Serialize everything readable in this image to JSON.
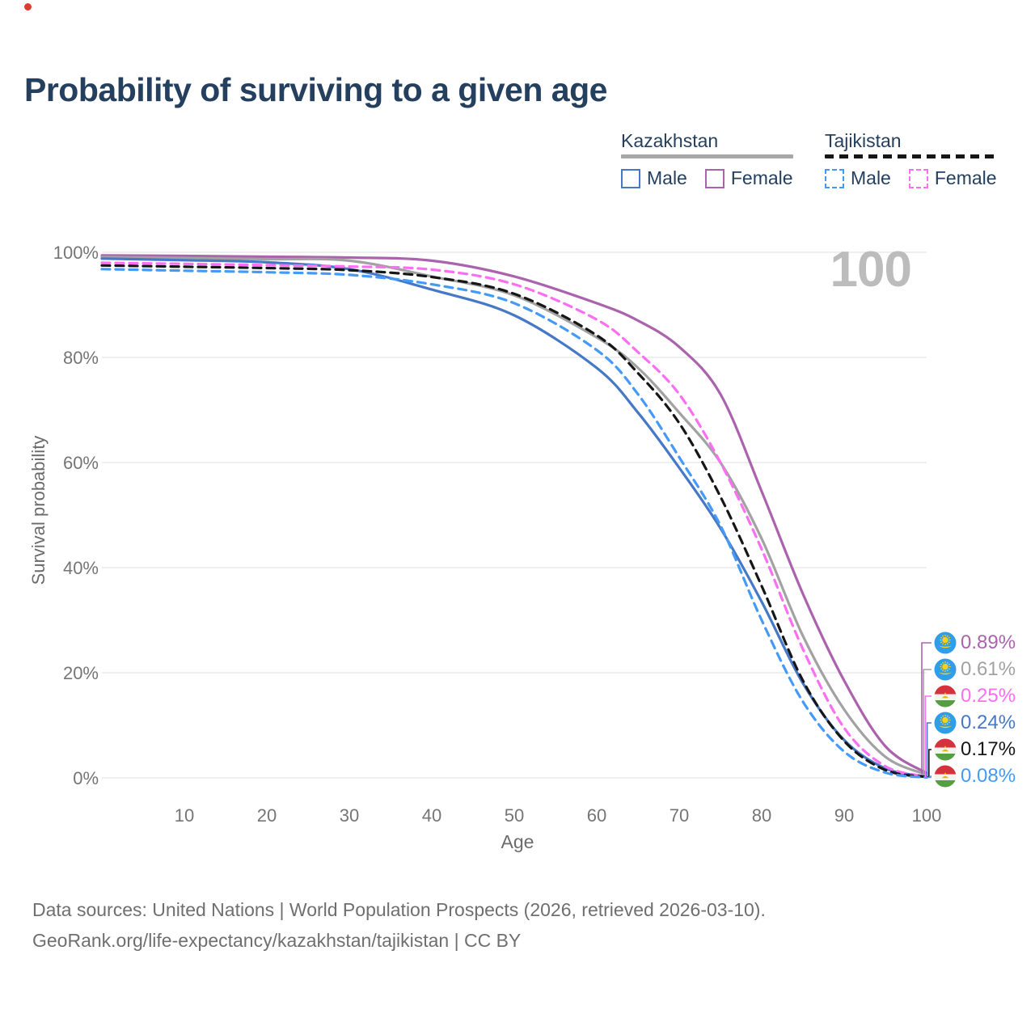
{
  "title": "Probability of surviving to a given age",
  "watermark": "100",
  "legend": {
    "groups": [
      {
        "country": "Kazakhstan",
        "line_style": "solid",
        "line_color": "#a7a7a7",
        "items": [
          {
            "label": "Male",
            "color": "#4678c8",
            "dashed": false
          },
          {
            "label": "Female",
            "color": "#ab63ad",
            "dashed": false
          }
        ]
      },
      {
        "country": "Tajikistan",
        "line_style": "dashed",
        "line_color": "#161616",
        "items": [
          {
            "label": "Male",
            "color": "#459af7",
            "dashed": true
          },
          {
            "label": "Female",
            "color": "#fc6ef2",
            "dashed": true
          }
        ]
      }
    ]
  },
  "chart_data": {
    "type": "line",
    "title": "Probability of surviving to a given age",
    "xlabel": "Age",
    "ylabel": "Survival probability",
    "xlim": [
      0,
      100
    ],
    "ylim": [
      0,
      100
    ],
    "grid": true,
    "x_ticks": [
      {
        "label": "10",
        "value": 10
      },
      {
        "label": "20",
        "value": 20
      },
      {
        "label": "30",
        "value": 30
      },
      {
        "label": "40",
        "value": 40
      },
      {
        "label": "50",
        "value": 50
      },
      {
        "label": "60",
        "value": 60
      },
      {
        "label": "70",
        "value": 70
      },
      {
        "label": "80",
        "value": 80
      },
      {
        "label": "90",
        "value": 90
      },
      {
        "label": "100",
        "value": 100
      }
    ],
    "y_ticks": [
      {
        "label": "0%",
        "value": 0
      },
      {
        "label": "20%",
        "value": 20
      },
      {
        "label": "40%",
        "value": 40
      },
      {
        "label": "60%",
        "value": 60
      },
      {
        "label": "80%",
        "value": 80
      },
      {
        "label": "100%",
        "value": 100
      }
    ],
    "series": [
      {
        "name": "Kazakhstan Female",
        "color": "#ab63ad",
        "dashed": false,
        "flag": "kz",
        "end_value": "0.89%",
        "row": 0,
        "points": [
          [
            0,
            99.4
          ],
          [
            10,
            99.3
          ],
          [
            20,
            99.15
          ],
          [
            30,
            99.0
          ],
          [
            40,
            98.4
          ],
          [
            50,
            95.4
          ],
          [
            60,
            90.3
          ],
          [
            65,
            87.0
          ],
          [
            70,
            82.0
          ],
          [
            75,
            73.0
          ],
          [
            80,
            54.5
          ],
          [
            85,
            35.0
          ],
          [
            90,
            18.5
          ],
          [
            95,
            6.0
          ],
          [
            100,
            0.89
          ]
        ]
      },
      {
        "name": "Kazakhstan Both sexes",
        "color": "#a2a2a2",
        "dashed": false,
        "flag": "kz",
        "end_value": "0.61%",
        "row": 1,
        "points": [
          [
            0,
            99.1
          ],
          [
            10,
            98.9
          ],
          [
            20,
            98.7
          ],
          [
            30,
            98.4
          ],
          [
            40,
            95.4
          ],
          [
            50,
            91.8
          ],
          [
            60,
            83.8
          ],
          [
            65,
            78.0
          ],
          [
            70,
            69.5
          ],
          [
            75,
            60.0
          ],
          [
            80,
            45.5
          ],
          [
            85,
            27.0
          ],
          [
            90,
            13.0
          ],
          [
            95,
            4.0
          ],
          [
            100,
            0.61
          ]
        ]
      },
      {
        "name": "Kazakhstan Male",
        "color": "#4678c8",
        "dashed": false,
        "flag": "kz",
        "end_value": "0.24%",
        "row": 3,
        "points": [
          [
            0,
            98.8
          ],
          [
            10,
            98.5
          ],
          [
            20,
            98.1
          ],
          [
            30,
            96.8
          ],
          [
            40,
            92.9
          ],
          [
            50,
            88.0
          ],
          [
            60,
            78.0
          ],
          [
            65,
            69.5
          ],
          [
            70,
            59.0
          ],
          [
            75,
            47.5
          ],
          [
            80,
            33.5
          ],
          [
            85,
            18.0
          ],
          [
            90,
            7.2
          ],
          [
            95,
            1.8
          ],
          [
            100,
            0.24
          ]
        ]
      },
      {
        "name": "Tajikistan Female",
        "color": "#fc6ef2",
        "dashed": true,
        "flag": "tj",
        "end_value": "0.25%",
        "row": 2,
        "points": [
          [
            0,
            98.0
          ],
          [
            10,
            97.8
          ],
          [
            20,
            97.55
          ],
          [
            30,
            97.3
          ],
          [
            40,
            96.7
          ],
          [
            50,
            93.9
          ],
          [
            60,
            87.2
          ],
          [
            65,
            81.0
          ],
          [
            70,
            73.0
          ],
          [
            75,
            60.0
          ],
          [
            80,
            43.5
          ],
          [
            85,
            24.5
          ],
          [
            90,
            9.5
          ],
          [
            95,
            2.2
          ],
          [
            100,
            0.25
          ]
        ]
      },
      {
        "name": "Tajikistan Both sexes",
        "color": "#161616",
        "dashed": true,
        "flag": "tj",
        "end_value": "0.17%",
        "row": 4,
        "points": [
          [
            0,
            97.5
          ],
          [
            10,
            97.25
          ],
          [
            20,
            97.0
          ],
          [
            30,
            96.6
          ],
          [
            40,
            95.3
          ],
          [
            50,
            92.1
          ],
          [
            60,
            84.2
          ],
          [
            65,
            77.0
          ],
          [
            70,
            67.5
          ],
          [
            75,
            53.5
          ],
          [
            80,
            36.5
          ],
          [
            85,
            18.5
          ],
          [
            90,
            7.0
          ],
          [
            95,
            1.5
          ],
          [
            100,
            0.17
          ]
        ]
      },
      {
        "name": "Tajikistan Male",
        "color": "#459af7",
        "dashed": true,
        "flag": "tj",
        "end_value": "0.08%",
        "row": 5,
        "points": [
          [
            0,
            96.8
          ],
          [
            10,
            96.5
          ],
          [
            20,
            96.2
          ],
          [
            30,
            95.7
          ],
          [
            40,
            93.9
          ],
          [
            50,
            90.3
          ],
          [
            60,
            81.4
          ],
          [
            65,
            73.0
          ],
          [
            70,
            61.0
          ],
          [
            75,
            48.0
          ],
          [
            80,
            30.0
          ],
          [
            85,
            14.5
          ],
          [
            90,
            5.0
          ],
          [
            95,
            1.0
          ],
          [
            100,
            0.08
          ]
        ]
      }
    ]
  },
  "footer": {
    "line1": "Data sources: United Nations | World Population Prospects (2026, retrieved 2026-03-10).",
    "line2": "GeoRank.org/life-expectancy/kazakhstan/tajikistan | CC BY"
  }
}
